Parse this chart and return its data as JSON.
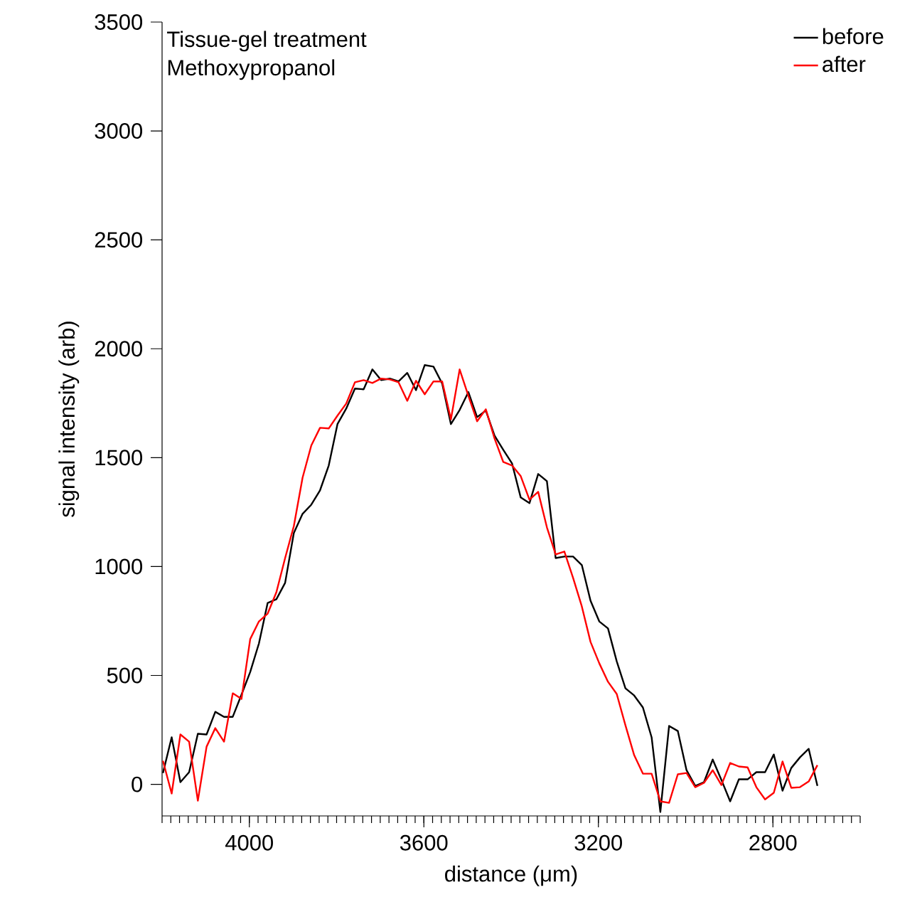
{
  "chart_data": {
    "type": "line",
    "title": "Tissue-gel treatment",
    "subtitle": "Methoxypropanol",
    "xlabel": "distance (μm)",
    "ylabel": "signal intensity (arb)",
    "x": [
      4198,
      4178,
      4158,
      4138,
      4118,
      4098,
      4078,
      4058,
      4038,
      4018,
      3998,
      3978,
      3958,
      3938,
      3918,
      3898,
      3878,
      3858,
      3838,
      3818,
      3798,
      3778,
      3758,
      3738,
      3718,
      3698,
      3678,
      3658,
      3638,
      3618,
      3598,
      3578,
      3558,
      3538,
      3518,
      3498,
      3478,
      3458,
      3438,
      3418,
      3398,
      3378,
      3358,
      3338,
      3318,
      3298,
      3278,
      3258,
      3238,
      3218,
      3198,
      3178,
      3158,
      3138,
      3118,
      3098,
      3078,
      3058,
      3038,
      3018,
      2998,
      2978,
      2958,
      2938,
      2918,
      2898,
      2878,
      2858,
      2838,
      2818,
      2798,
      2778,
      2758,
      2738,
      2718,
      2698
    ],
    "series": [
      {
        "name": "before",
        "color": "#000000",
        "values": [
          52,
          216,
          10,
          56,
          232,
          229,
          333,
          310,
          310,
          412,
          516,
          647,
          833,
          850,
          925,
          1154,
          1242,
          1284,
          1350,
          1464,
          1654,
          1725,
          1817,
          1814,
          1905,
          1856,
          1863,
          1850,
          1889,
          1810,
          1925,
          1918,
          1840,
          1654,
          1719,
          1801,
          1686,
          1716,
          1601,
          1536,
          1474,
          1317,
          1291,
          1425,
          1392,
          1039,
          1046,
          1046,
          1007,
          843,
          748,
          716,
          565,
          441,
          408,
          353,
          216,
          -127,
          268,
          245,
          65,
          -7,
          10,
          114,
          20,
          -78,
          23,
          23,
          56,
          56,
          137,
          -29,
          75,
          124,
          163,
          -7
        ]
      },
      {
        "name": "after",
        "color": "#ff0000",
        "values": [
          108,
          -42,
          229,
          196,
          -75,
          173,
          258,
          196,
          418,
          392,
          667,
          748,
          784,
          882,
          1039,
          1186,
          1408,
          1556,
          1637,
          1634,
          1693,
          1748,
          1846,
          1856,
          1843,
          1863,
          1859,
          1846,
          1761,
          1853,
          1791,
          1850,
          1850,
          1676,
          1905,
          1784,
          1667,
          1722,
          1588,
          1480,
          1464,
          1415,
          1307,
          1343,
          1180,
          1056,
          1069,
          948,
          817,
          654,
          556,
          471,
          415,
          271,
          134,
          49,
          49,
          -78,
          -85,
          46,
          52,
          -13,
          7,
          65,
          -3,
          98,
          82,
          78,
          -13,
          -69,
          -39,
          105,
          -16,
          -13,
          13,
          88
        ]
      }
    ],
    "xlim": [
      4200,
      2600
    ],
    "xticks": [
      4000,
      3600,
      3200,
      2800
    ],
    "ylim": [
      -145,
      3500
    ],
    "yticks": [
      0,
      500,
      1000,
      1500,
      2000,
      2500,
      3000,
      3500
    ],
    "legend": "top right",
    "grid": false,
    "line_style": "solid",
    "marker": "none"
  }
}
